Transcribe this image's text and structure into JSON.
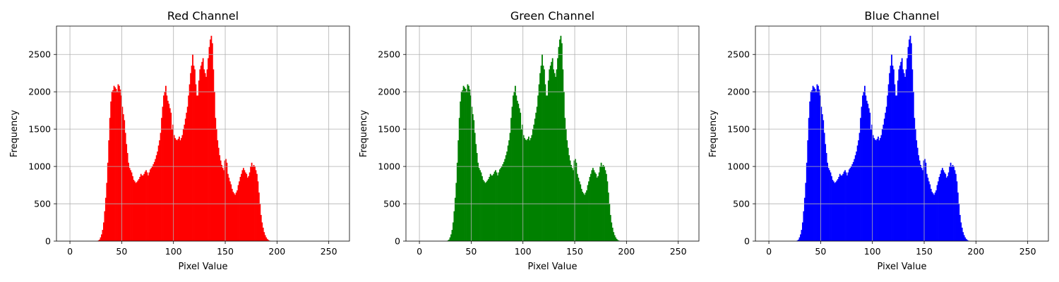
{
  "chart_data": [
    {
      "type": "bar",
      "title": "Red Channel",
      "xlabel": "Pixel Value",
      "ylabel": "Frequency",
      "color": "#ff0000",
      "xlim": [
        -13,
        270
      ],
      "ylim": [
        0,
        2880
      ],
      "xticks": [
        0,
        50,
        100,
        150,
        200,
        250
      ],
      "yticks": [
        0,
        500,
        1000,
        1500,
        2000,
        2500
      ],
      "grid": true,
      "bins": 256,
      "series": [
        {
          "values": [
            0,
            0,
            0,
            0,
            0,
            0,
            0,
            0,
            0,
            0,
            0,
            0,
            0,
            0,
            0,
            0,
            0,
            0,
            0,
            0,
            0,
            0,
            0,
            0,
            0,
            0,
            0,
            10,
            20,
            50,
            90,
            150,
            250,
            400,
            580,
            780,
            1050,
            1350,
            1650,
            1870,
            2000,
            2020,
            2080,
            2060,
            2040,
            2000,
            2100,
            2080,
            2030,
            1950,
            1800,
            1700,
            1620,
            1450,
            1300,
            1180,
            1050,
            980,
            950,
            920,
            870,
            820,
            800,
            780,
            790,
            810,
            830,
            860,
            900,
            880,
            880,
            900,
            930,
            950,
            920,
            880,
            920,
            960,
            980,
            1000,
            1030,
            1060,
            1100,
            1150,
            1200,
            1280,
            1350,
            1450,
            1650,
            1800,
            1950,
            2000,
            2080,
            1950,
            1880,
            1840,
            1780,
            1720,
            1500,
            1560,
            1420,
            1380,
            1360,
            1350,
            1370,
            1400,
            1350,
            1380,
            1420,
            1500,
            1560,
            1640,
            1720,
            1800,
            1950,
            2100,
            2250,
            2350,
            2500,
            2350,
            2300,
            2100,
            1950,
            1950,
            2150,
            2300,
            2350,
            2400,
            2450,
            2300,
            2250,
            2200,
            2300,
            2450,
            2600,
            2700,
            2750,
            2650,
            2300,
            2000,
            1650,
            1500,
            1350,
            1250,
            1150,
            1080,
            1020,
            980,
            950,
            1080,
            1100,
            1050,
            900,
            850,
            800,
            760,
            700,
            660,
            640,
            620,
            650,
            680,
            750,
            800,
            860,
            900,
            950,
            980,
            950,
            920,
            900,
            850,
            870,
            920,
            1000,
            1050,
            1000,
            1020,
            1000,
            950,
            900,
            800,
            650,
            500,
            350,
            250,
            180,
            120,
            80,
            50,
            30,
            15,
            8,
            4,
            2,
            0,
            0,
            0,
            0,
            0,
            0,
            0,
            0,
            0,
            0,
            0,
            0,
            0,
            0,
            0,
            0,
            0,
            0,
            0,
            0,
            0,
            0,
            0,
            0,
            0,
            0,
            0,
            0,
            0,
            0,
            0,
            0,
            0,
            0,
            0,
            0,
            0,
            0,
            0,
            0,
            0,
            0,
            0,
            0,
            0,
            0,
            0,
            0,
            0,
            0,
            0,
            0,
            0,
            0,
            0,
            0,
            0,
            0,
            0,
            0,
            0,
            0,
            0,
            0,
            0
          ]
        }
      ]
    },
    {
      "type": "bar",
      "title": "Green Channel",
      "xlabel": "Pixel Value",
      "ylabel": "Frequency",
      "color": "#008000",
      "xlim": [
        -13,
        270
      ],
      "ylim": [
        0,
        2880
      ],
      "xticks": [
        0,
        50,
        100,
        150,
        200,
        250
      ],
      "yticks": [
        0,
        500,
        1000,
        1500,
        2000,
        2500
      ],
      "grid": true,
      "bins": 256,
      "series": [
        {
          "values": [
            0,
            0,
            0,
            0,
            0,
            0,
            0,
            0,
            0,
            0,
            0,
            0,
            0,
            0,
            0,
            0,
            0,
            0,
            0,
            0,
            0,
            0,
            0,
            0,
            0,
            0,
            0,
            10,
            20,
            50,
            90,
            150,
            250,
            400,
            580,
            780,
            1050,
            1350,
            1650,
            1870,
            2000,
            2020,
            2080,
            2060,
            2040,
            2000,
            2100,
            2080,
            2030,
            1950,
            1800,
            1700,
            1620,
            1450,
            1300,
            1180,
            1050,
            980,
            950,
            920,
            870,
            820,
            800,
            780,
            790,
            810,
            830,
            860,
            900,
            880,
            880,
            900,
            930,
            950,
            920,
            880,
            920,
            960,
            980,
            1000,
            1030,
            1060,
            1100,
            1150,
            1200,
            1280,
            1350,
            1450,
            1650,
            1800,
            1950,
            2000,
            2080,
            1950,
            1880,
            1840,
            1780,
            1720,
            1500,
            1560,
            1420,
            1380,
            1360,
            1350,
            1370,
            1400,
            1350,
            1380,
            1420,
            1500,
            1560,
            1640,
            1720,
            1800,
            1950,
            2100,
            2250,
            2350,
            2500,
            2350,
            2300,
            2100,
            1950,
            1950,
            2150,
            2300,
            2350,
            2400,
            2450,
            2300,
            2250,
            2200,
            2300,
            2450,
            2600,
            2700,
            2750,
            2650,
            2300,
            2000,
            1650,
            1500,
            1350,
            1250,
            1150,
            1080,
            1020,
            980,
            950,
            1080,
            1100,
            1050,
            900,
            850,
            800,
            760,
            700,
            660,
            640,
            620,
            650,
            680,
            750,
            800,
            860,
            900,
            950,
            980,
            950,
            920,
            900,
            850,
            870,
            920,
            1000,
            1050,
            1000,
            1020,
            1000,
            950,
            900,
            800,
            650,
            500,
            350,
            250,
            180,
            120,
            80,
            50,
            30,
            15,
            8,
            4,
            2,
            0,
            0,
            0,
            0,
            0,
            0,
            0,
            0,
            0,
            0,
            0,
            0,
            0,
            0,
            0,
            0,
            0,
            0,
            0,
            0,
            0,
            0,
            0,
            0,
            0,
            0,
            0,
            0,
            0,
            0,
            0,
            0,
            0,
            0,
            0,
            0,
            0,
            0,
            0,
            0,
            0,
            0,
            0,
            0,
            0,
            0,
            0,
            0,
            0,
            0,
            0,
            0,
            0,
            0,
            0,
            0,
            0,
            0,
            0,
            0,
            0,
            0,
            0,
            0,
            0
          ]
        }
      ]
    },
    {
      "type": "bar",
      "title": "Blue Channel",
      "xlabel": "Pixel Value",
      "ylabel": "Frequency",
      "color": "#0000ff",
      "xlim": [
        -13,
        270
      ],
      "ylim": [
        0,
        2880
      ],
      "xticks": [
        0,
        50,
        100,
        150,
        200,
        250
      ],
      "yticks": [
        0,
        500,
        1000,
        1500,
        2000,
        2500
      ],
      "grid": true,
      "bins": 256,
      "series": [
        {
          "values": [
            0,
            0,
            0,
            0,
            0,
            0,
            0,
            0,
            0,
            0,
            0,
            0,
            0,
            0,
            0,
            0,
            0,
            0,
            0,
            0,
            0,
            0,
            0,
            0,
            0,
            0,
            0,
            10,
            20,
            50,
            90,
            150,
            250,
            400,
            580,
            780,
            1050,
            1350,
            1650,
            1870,
            2000,
            2020,
            2080,
            2060,
            2040,
            2000,
            2100,
            2080,
            2030,
            1950,
            1800,
            1700,
            1620,
            1450,
            1300,
            1180,
            1050,
            980,
            950,
            920,
            870,
            820,
            800,
            780,
            790,
            810,
            830,
            860,
            900,
            880,
            880,
            900,
            930,
            950,
            920,
            880,
            920,
            960,
            980,
            1000,
            1030,
            1060,
            1100,
            1150,
            1200,
            1280,
            1350,
            1450,
            1650,
            1800,
            1950,
            2000,
            2080,
            1950,
            1880,
            1840,
            1780,
            1720,
            1500,
            1560,
            1420,
            1380,
            1360,
            1350,
            1370,
            1400,
            1350,
            1380,
            1420,
            1500,
            1560,
            1640,
            1720,
            1800,
            1950,
            2100,
            2250,
            2350,
            2500,
            2350,
            2300,
            2100,
            1950,
            1950,
            2150,
            2300,
            2350,
            2400,
            2450,
            2300,
            2250,
            2200,
            2300,
            2450,
            2600,
            2700,
            2750,
            2650,
            2300,
            2000,
            1650,
            1500,
            1350,
            1250,
            1150,
            1080,
            1020,
            980,
            950,
            1080,
            1100,
            1050,
            900,
            850,
            800,
            760,
            700,
            660,
            640,
            620,
            650,
            680,
            750,
            800,
            860,
            900,
            950,
            980,
            950,
            920,
            900,
            850,
            870,
            920,
            1000,
            1050,
            1000,
            1020,
            1000,
            950,
            900,
            800,
            650,
            500,
            350,
            250,
            180,
            120,
            80,
            50,
            30,
            15,
            8,
            4,
            2,
            0,
            0,
            0,
            0,
            0,
            0,
            0,
            0,
            0,
            0,
            0,
            0,
            0,
            0,
            0,
            0,
            0,
            0,
            0,
            0,
            0,
            0,
            0,
            0,
            0,
            0,
            0,
            0,
            0,
            0,
            0,
            0,
            0,
            0,
            0,
            0,
            0,
            0,
            0,
            0,
            0,
            0,
            0,
            0,
            0,
            0,
            0,
            0,
            0,
            0,
            0,
            0,
            0,
            0,
            0,
            0,
            0,
            0,
            0,
            0,
            0,
            0,
            0,
            0,
            0
          ]
        }
      ]
    }
  ]
}
